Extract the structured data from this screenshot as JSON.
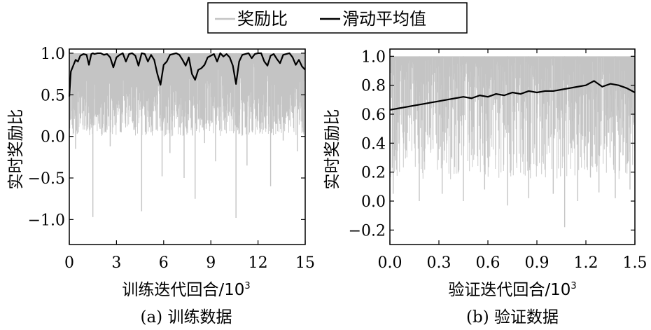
{
  "legend": {
    "items": [
      {
        "label": "奖励比",
        "color": "#c4c4c4"
      },
      {
        "label": "滑动平均值",
        "color": "#000000"
      }
    ]
  },
  "chart_data": [
    {
      "type": "line",
      "caption": "(a) 训练数据",
      "xlabel": "训练迭代回合/10",
      "xlabel_exp": "3",
      "ylabel": "实时奖励比",
      "xlim": [
        0,
        15
      ],
      "ylim": [
        -1.3,
        1.05
      ],
      "xticks": [
        0,
        3,
        6,
        9,
        12,
        15
      ],
      "xtick_labels": [
        "0",
        "3",
        "6",
        "9",
        "12",
        "15"
      ],
      "yticks": [
        1.0,
        0.5,
        0.0,
        -0.5,
        -1.0
      ],
      "ytick_labels": [
        "1.0",
        "0.5",
        "0.0",
        "−0.5",
        "−1.0"
      ],
      "series": [
        {
          "name": "奖励比",
          "color": "#c4c4c4",
          "kind": "raw",
          "upper": 1.0,
          "typical_low": [
            0.45,
            0.0
          ],
          "dips": [
            {
              "x": 0.4,
              "y": -0.15
            },
            {
              "x": 1.5,
              "y": -0.97
            },
            {
              "x": 2.1,
              "y": 0.1
            },
            {
              "x": 2.6,
              "y": -0.12
            },
            {
              "x": 3.3,
              "y": 0.05
            },
            {
              "x": 4.6,
              "y": -0.9
            },
            {
              "x": 5.2,
              "y": 0.05
            },
            {
              "x": 5.9,
              "y": -0.48
            },
            {
              "x": 6.4,
              "y": -0.2
            },
            {
              "x": 7.3,
              "y": -0.5
            },
            {
              "x": 8.0,
              "y": -0.75
            },
            {
              "x": 8.6,
              "y": -0.08
            },
            {
              "x": 9.3,
              "y": -0.3
            },
            {
              "x": 10.6,
              "y": -0.98
            },
            {
              "x": 11.3,
              "y": -0.35
            },
            {
              "x": 12.1,
              "y": 0.1
            },
            {
              "x": 12.8,
              "y": -0.6
            },
            {
              "x": 13.6,
              "y": -0.05
            },
            {
              "x": 14.5,
              "y": -0.18
            },
            {
              "x": 14.9,
              "y": 0.05
            }
          ]
        },
        {
          "name": "滑动平均值",
          "color": "#000000",
          "kind": "moving-average",
          "x": [
            0.0,
            0.1,
            0.25,
            0.4,
            0.55,
            0.7,
            0.9,
            1.1,
            1.25,
            1.4,
            1.5,
            1.6,
            1.8,
            2.0,
            2.2,
            2.4,
            2.6,
            2.8,
            3.0,
            3.2,
            3.4,
            3.6,
            3.8,
            4.0,
            4.2,
            4.4,
            4.6,
            4.8,
            5.0,
            5.2,
            5.4,
            5.6,
            5.8,
            6.0,
            6.2,
            6.4,
            6.6,
            6.8,
            7.0,
            7.2,
            7.4,
            7.6,
            7.8,
            8.0,
            8.2,
            8.4,
            8.6,
            8.8,
            9.0,
            9.2,
            9.4,
            9.6,
            9.8,
            10.0,
            10.2,
            10.4,
            10.6,
            10.8,
            11.0,
            11.2,
            11.4,
            11.6,
            11.8,
            12.0,
            12.2,
            12.4,
            12.6,
            12.8,
            13.0,
            13.2,
            13.4,
            13.6,
            13.8,
            14.0,
            14.2,
            14.4,
            14.6,
            14.8,
            15.0
          ],
          "y": [
            0.48,
            0.78,
            0.85,
            0.92,
            0.9,
            0.97,
            0.99,
            0.98,
            0.86,
            0.99,
            1.0,
            0.99,
            1.0,
            1.0,
            0.98,
            0.99,
            0.95,
            0.83,
            0.95,
            0.98,
            1.0,
            0.9,
            0.99,
            1.0,
            0.97,
            0.85,
            1.0,
            0.99,
            0.9,
            0.98,
            0.92,
            0.75,
            0.62,
            0.86,
            0.9,
            0.98,
            0.99,
            1.0,
            0.98,
            0.92,
            0.85,
            0.95,
            0.75,
            0.68,
            0.8,
            0.82,
            0.86,
            0.95,
            0.97,
            0.99,
            0.9,
            1.0,
            0.96,
            0.99,
            0.95,
            0.85,
            0.63,
            0.9,
            0.98,
            0.99,
            1.0,
            0.94,
            0.99,
            1.0,
            1.0,
            0.9,
            0.85,
            0.97,
            0.99,
            0.93,
            0.88,
            0.98,
            0.99,
            1.0,
            0.95,
            0.86,
            0.92,
            0.84,
            0.8
          ]
        }
      ]
    },
    {
      "type": "line",
      "caption": "(b) 验证数据",
      "xlabel": "验证迭代回合/10",
      "xlabel_exp": "3",
      "ylabel": "实时奖励比",
      "xlim": [
        0,
        1.5
      ],
      "ylim": [
        -0.3,
        1.05
      ],
      "xticks": [
        0.0,
        0.3,
        0.6,
        0.9,
        1.2,
        1.5
      ],
      "xtick_labels": [
        "0.0",
        "0.3",
        "0.6",
        "0.9",
        "1.2",
        "1.5"
      ],
      "yticks": [
        1.0,
        0.8,
        0.6,
        0.4,
        0.2,
        0.0,
        -0.2
      ],
      "ytick_labels": [
        "1.0",
        "0.8",
        "0.6",
        "0.4",
        "0.2",
        "0.0",
        "−0.2"
      ],
      "series": [
        {
          "name": "奖励比",
          "color": "#c4c4c4",
          "kind": "raw",
          "upper": 1.0,
          "typical_low": [
            0.55,
            0.15
          ],
          "dips": [
            {
              "x": 0.02,
              "y": 0.05
            },
            {
              "x": 0.18,
              "y": 0.0
            },
            {
              "x": 0.32,
              "y": 0.05
            },
            {
              "x": 0.45,
              "y": 0.0
            },
            {
              "x": 0.58,
              "y": 0.08
            },
            {
              "x": 0.72,
              "y": -0.03
            },
            {
              "x": 0.85,
              "y": 0.02
            },
            {
              "x": 1.0,
              "y": 0.05
            },
            {
              "x": 1.07,
              "y": -0.18
            },
            {
              "x": 1.15,
              "y": 0.0
            },
            {
              "x": 1.28,
              "y": 0.06
            },
            {
              "x": 1.38,
              "y": 0.02
            },
            {
              "x": 1.47,
              "y": 0.08
            }
          ]
        },
        {
          "name": "滑动平均值",
          "color": "#000000",
          "kind": "moving-average",
          "x": [
            0.0,
            0.05,
            0.1,
            0.15,
            0.2,
            0.25,
            0.3,
            0.35,
            0.4,
            0.45,
            0.5,
            0.55,
            0.6,
            0.65,
            0.7,
            0.75,
            0.8,
            0.85,
            0.9,
            0.95,
            1.0,
            1.05,
            1.1,
            1.15,
            1.2,
            1.25,
            1.3,
            1.35,
            1.4,
            1.45,
            1.5
          ],
          "y": [
            0.63,
            0.64,
            0.65,
            0.66,
            0.67,
            0.68,
            0.69,
            0.7,
            0.71,
            0.72,
            0.71,
            0.73,
            0.72,
            0.74,
            0.73,
            0.75,
            0.74,
            0.76,
            0.75,
            0.76,
            0.76,
            0.77,
            0.78,
            0.79,
            0.8,
            0.83,
            0.79,
            0.81,
            0.8,
            0.78,
            0.75
          ]
        }
      ]
    }
  ]
}
